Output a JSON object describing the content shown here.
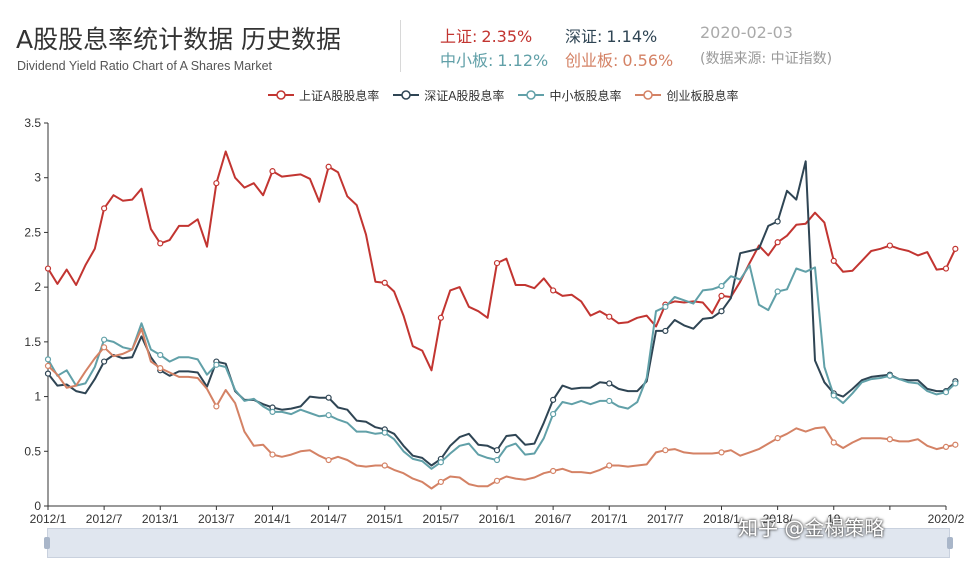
{
  "header": {
    "title": "A股股息率统计数据 历史数据",
    "subtitle": "Dividend Yield Ratio Chart of A Shares Market",
    "date": "2020-02-03",
    "source": "(数据来源: 中证指数)"
  },
  "stats": [
    {
      "label": "上证:",
      "value": "2.35%",
      "color": "#c23531"
    },
    {
      "label": "深证:",
      "value": "1.14%",
      "color": "#2f4554"
    },
    {
      "label": "中小板:",
      "value": "1.12%",
      "color": "#61a0a8"
    },
    {
      "label": "创业板:",
      "value": "0.56%",
      "color": "#d48265"
    }
  ],
  "watermark": "知乎 @金榻策略",
  "chart_data": {
    "type": "line",
    "ylim": [
      0,
      3.5
    ],
    "yticks": [
      "0",
      "0.5",
      "1",
      "1.5",
      "2",
      "2.5",
      "3",
      "3.5"
    ],
    "xticks": [
      "2012/1",
      "2012/7",
      "2013/1",
      "2013/7",
      "2014/1",
      "2014/7",
      "2015/1",
      "2015/7",
      "2016/1",
      "2016/7",
      "2017/1",
      "2017/7",
      "2018/1",
      "2018/7",
      "2019/1",
      "2019/7",
      "2020/2"
    ],
    "xtick_labels": [
      "2012/1",
      "2012/7",
      "2013/1",
      "2013/7",
      "2014/1",
      "2014/7",
      "2015/1",
      "2015/7",
      "2016/1",
      "2016/7",
      "2017/1",
      "2017/7",
      "2018/1",
      "2018/",
      "19",
      "",
      "2020/2"
    ],
    "x_months": 97,
    "grid": false,
    "legend": "top-center",
    "series": [
      {
        "name": "上证A股股息率",
        "color": "#c23531",
        "values": [
          2.17,
          2.03,
          2.16,
          2.02,
          2.2,
          2.35,
          2.72,
          2.84,
          2.79,
          2.8,
          2.9,
          2.53,
          2.4,
          2.43,
          2.56,
          2.56,
          2.62,
          2.37,
          2.95,
          3.24,
          3.0,
          2.91,
          2.95,
          2.84,
          3.06,
          3.01,
          3.02,
          3.03,
          2.99,
          2.78,
          3.1,
          3.05,
          2.83,
          2.75,
          2.48,
          2.05,
          2.04,
          1.96,
          1.74,
          1.46,
          1.42,
          1.24,
          1.72,
          1.97,
          2.0,
          1.82,
          1.78,
          1.72,
          2.22,
          2.26,
          2.02,
          2.02,
          1.99,
          2.08,
          1.97,
          1.92,
          1.93,
          1.87,
          1.74,
          1.78,
          1.73,
          1.67,
          1.68,
          1.72,
          1.74,
          1.64,
          1.84,
          1.87,
          1.86,
          1.87,
          1.86,
          1.76,
          1.92,
          1.91,
          2.05,
          2.22,
          2.38,
          2.29,
          2.41,
          2.47,
          2.57,
          2.58,
          2.68,
          2.59,
          2.24,
          2.14,
          2.15,
          2.24,
          2.33,
          2.35,
          2.38,
          2.35,
          2.33,
          2.29,
          2.32,
          2.16,
          2.17,
          2.35
        ]
      },
      {
        "name": "深证A股股息率",
        "color": "#2f4554",
        "values": [
          1.21,
          1.1,
          1.11,
          1.05,
          1.03,
          1.16,
          1.32,
          1.38,
          1.35,
          1.36,
          1.55,
          1.36,
          1.24,
          1.19,
          1.23,
          1.23,
          1.22,
          1.09,
          1.32,
          1.3,
          1.05,
          0.97,
          0.97,
          0.93,
          0.9,
          0.88,
          0.89,
          0.91,
          1.0,
          0.99,
          0.99,
          0.9,
          0.88,
          0.78,
          0.77,
          0.72,
          0.7,
          0.66,
          0.55,
          0.46,
          0.44,
          0.37,
          0.43,
          0.55,
          0.63,
          0.66,
          0.56,
          0.55,
          0.51,
          0.64,
          0.65,
          0.56,
          0.57,
          0.76,
          0.97,
          1.1,
          1.07,
          1.08,
          1.08,
          1.13,
          1.12,
          1.07,
          1.05,
          1.05,
          1.14,
          1.6,
          1.6,
          1.7,
          1.65,
          1.62,
          1.71,
          1.72,
          1.78,
          1.9,
          2.31,
          2.33,
          2.35,
          2.56,
          2.6,
          2.88,
          2.8,
          3.15,
          1.33,
          1.13,
          1.03,
          1.0,
          1.07,
          1.15,
          1.18,
          1.19,
          1.2,
          1.16,
          1.15,
          1.15,
          1.07,
          1.05,
          1.05,
          1.14
        ]
      },
      {
        "name": "中小板股息率",
        "color": "#61a0a8",
        "values": [
          1.34,
          1.19,
          1.24,
          1.1,
          1.12,
          1.27,
          1.52,
          1.5,
          1.45,
          1.43,
          1.67,
          1.43,
          1.38,
          1.32,
          1.36,
          1.36,
          1.34,
          1.2,
          1.29,
          1.27,
          1.06,
          0.96,
          0.98,
          0.91,
          0.86,
          0.86,
          0.84,
          0.88,
          0.85,
          0.82,
          0.83,
          0.79,
          0.76,
          0.68,
          0.68,
          0.66,
          0.67,
          0.61,
          0.5,
          0.43,
          0.41,
          0.34,
          0.4,
          0.48,
          0.55,
          0.57,
          0.47,
          0.44,
          0.42,
          0.54,
          0.57,
          0.47,
          0.48,
          0.62,
          0.84,
          0.95,
          0.93,
          0.96,
          0.93,
          0.96,
          0.96,
          0.91,
          0.89,
          0.95,
          1.17,
          1.78,
          1.82,
          1.91,
          1.88,
          1.85,
          1.97,
          1.98,
          2.01,
          2.1,
          2.07,
          2.2,
          1.84,
          1.79,
          1.96,
          1.98,
          2.17,
          2.14,
          2.18,
          1.27,
          1.01,
          0.94,
          1.03,
          1.13,
          1.16,
          1.17,
          1.19,
          1.16,
          1.13,
          1.12,
          1.05,
          1.02,
          1.04,
          1.12
        ]
      },
      {
        "name": "创业板股息率",
        "color": "#d48265",
        "values": [
          1.28,
          1.2,
          1.08,
          1.1,
          1.23,
          1.35,
          1.45,
          1.37,
          1.39,
          1.43,
          1.62,
          1.32,
          1.26,
          1.22,
          1.18,
          1.18,
          1.17,
          1.07,
          0.91,
          1.06,
          0.94,
          0.68,
          0.55,
          0.56,
          0.47,
          0.45,
          0.47,
          0.5,
          0.51,
          0.46,
          0.42,
          0.45,
          0.42,
          0.37,
          0.36,
          0.37,
          0.37,
          0.33,
          0.3,
          0.25,
          0.22,
          0.16,
          0.22,
          0.27,
          0.26,
          0.2,
          0.18,
          0.18,
          0.23,
          0.27,
          0.25,
          0.24,
          0.26,
          0.3,
          0.32,
          0.34,
          0.31,
          0.31,
          0.3,
          0.33,
          0.37,
          0.37,
          0.36,
          0.37,
          0.38,
          0.49,
          0.51,
          0.52,
          0.49,
          0.48,
          0.48,
          0.48,
          0.49,
          0.51,
          0.46,
          0.49,
          0.52,
          0.57,
          0.62,
          0.66,
          0.71,
          0.68,
          0.71,
          0.72,
          0.58,
          0.53,
          0.58,
          0.62,
          0.62,
          0.62,
          0.61,
          0.59,
          0.59,
          0.61,
          0.55,
          0.52,
          0.54,
          0.56
        ]
      }
    ]
  }
}
